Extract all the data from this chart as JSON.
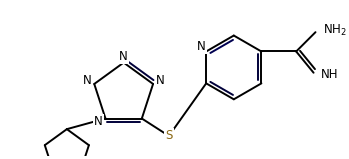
{
  "bg_color": "#ffffff",
  "bond_color": "#000000",
  "n_color": "#000000",
  "s_color": "#8B6914",
  "lw": 1.4,
  "fs": 8.5,
  "figsize": [
    3.49,
    1.59
  ],
  "dpi": 100,
  "xlim": [
    0,
    349
  ],
  "ylim": [
    0,
    159
  ]
}
